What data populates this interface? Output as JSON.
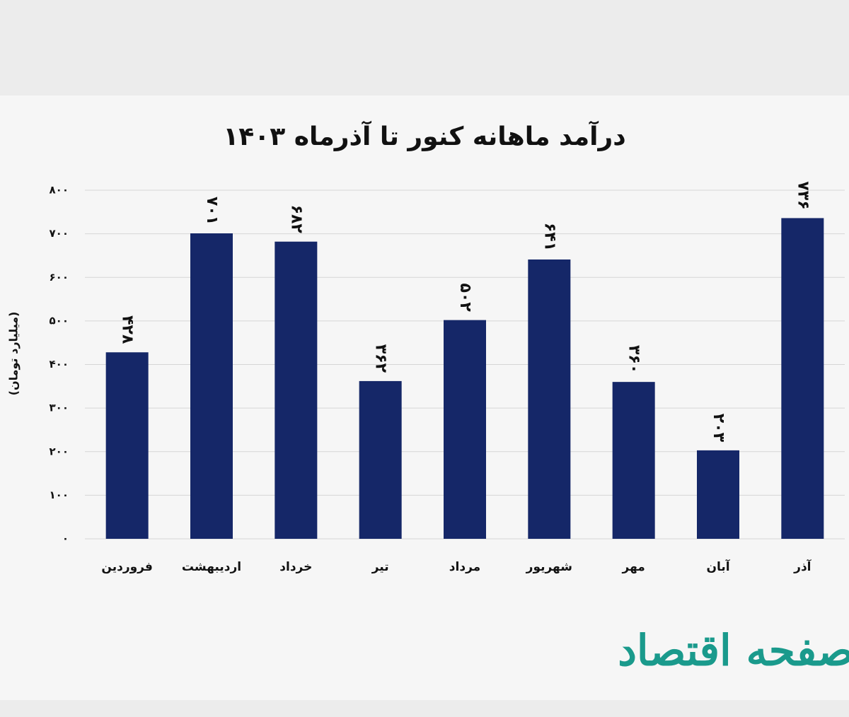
{
  "chart_data": {
    "type": "bar",
    "title": "درآمد ماهانه کنور تا آذرماه ۱۴۰۳",
    "y_label": "(میلیارد تومان)",
    "categories": [
      "فروردین",
      "اردیبهشت",
      "خرداد",
      "تیر",
      "مرداد",
      "شهریور",
      "مهر",
      "آبان",
      "آذر"
    ],
    "values": [
      428,
      701,
      682,
      362,
      502,
      641,
      360,
      203,
      736
    ],
    "value_labels": [
      "۴۲۸",
      "۷۰۱",
      "۶۸۲",
      "۳۶۲",
      "۵۰۲",
      "۶۴۱",
      "۳۶۰",
      "۲۰۳",
      "۷۳۶"
    ],
    "color": "#152768",
    "ylim": [
      0,
      800
    ],
    "yticks": [
      {
        "value": 0,
        "label": "۰"
      },
      {
        "value": 100,
        "label": "۱۰۰"
      },
      {
        "value": 200,
        "label": "۲۰۰"
      },
      {
        "value": 300,
        "label": "۳۰۰"
      },
      {
        "value": 400,
        "label": "۴۰۰"
      },
      {
        "value": 500,
        "label": "۵۰۰"
      },
      {
        "value": 600,
        "label": "۶۰۰"
      },
      {
        "value": 700,
        "label": "۷۰۰"
      },
      {
        "value": 800,
        "label": "۸۰۰"
      }
    ],
    "grid": true
  },
  "watermark": "صفحه اقتصاد"
}
